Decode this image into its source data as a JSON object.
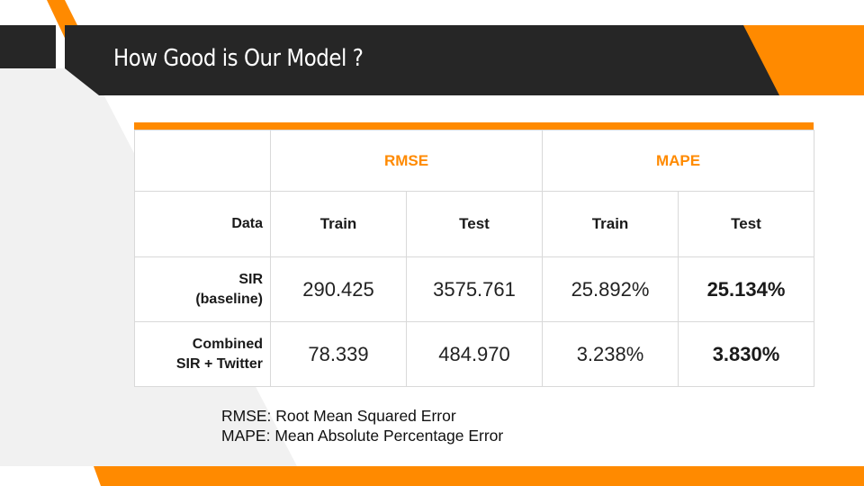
{
  "slide": {
    "title": "How Good is Our Model ?"
  },
  "colors": {
    "accent": "#ff8a00",
    "dark_band": "#262626",
    "light_panel": "#f1f1f1"
  },
  "table": {
    "metric_headers": [
      "RMSE",
      "MAPE"
    ],
    "split_header": {
      "label": "Data",
      "columns": [
        "Train",
        "Test",
        "Train",
        "Test"
      ]
    },
    "rows": [
      {
        "label_lines": [
          "SIR",
          "(baseline)"
        ],
        "values": [
          "290.425",
          "3575.761",
          "25.892%",
          "25.134%"
        ]
      },
      {
        "label_lines": [
          "Combined",
          "SIR + Twitter"
        ],
        "values": [
          "78.339",
          "484.970",
          "3.238%",
          "3.830%"
        ]
      }
    ]
  },
  "footnotes": [
    "RMSE: Root Mean Squared Error",
    "MAPE: Mean Absolute Percentage Error"
  ]
}
